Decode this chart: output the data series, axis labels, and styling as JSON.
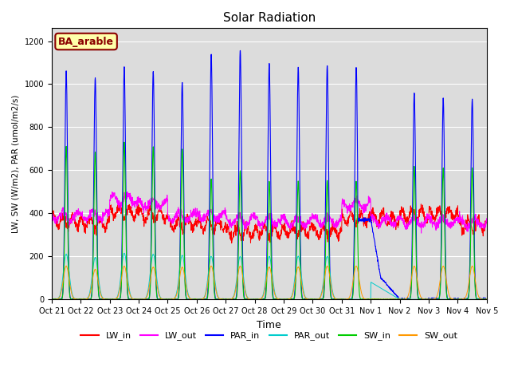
{
  "title": "Solar Radiation",
  "ylabel": "LW, SW (W/m2), PAR (umol/m2/s)",
  "xlabel": "Time",
  "ylim": [
    0,
    1260
  ],
  "yticks": [
    0,
    200,
    400,
    600,
    800,
    1000,
    1200
  ],
  "bg_color": "#dcdcdc",
  "label_box_text": "BA_arable",
  "label_box_facecolor": "#ffffaa",
  "label_box_edgecolor": "#8b0000",
  "label_box_textcolor": "#8b0000",
  "colors": {
    "LW_in": "#ff0000",
    "LW_out": "#ff00ff",
    "PAR_in": "#0000ff",
    "PAR_out": "#00cccc",
    "SW_in": "#00cc00",
    "SW_out": "#ff9900"
  },
  "n_days": 15,
  "xtick_labels": [
    "Oct 21",
    "Oct 22",
    "Oct 23",
    "Oct 24",
    "Oct 25",
    "Oct 26",
    "Oct 27",
    "Oct 28",
    "Oct 29",
    "Oct 30",
    "Oct 31",
    "Nov 1",
    "Nov 2",
    "Nov 3",
    "Nov 4",
    "Nov 5"
  ]
}
